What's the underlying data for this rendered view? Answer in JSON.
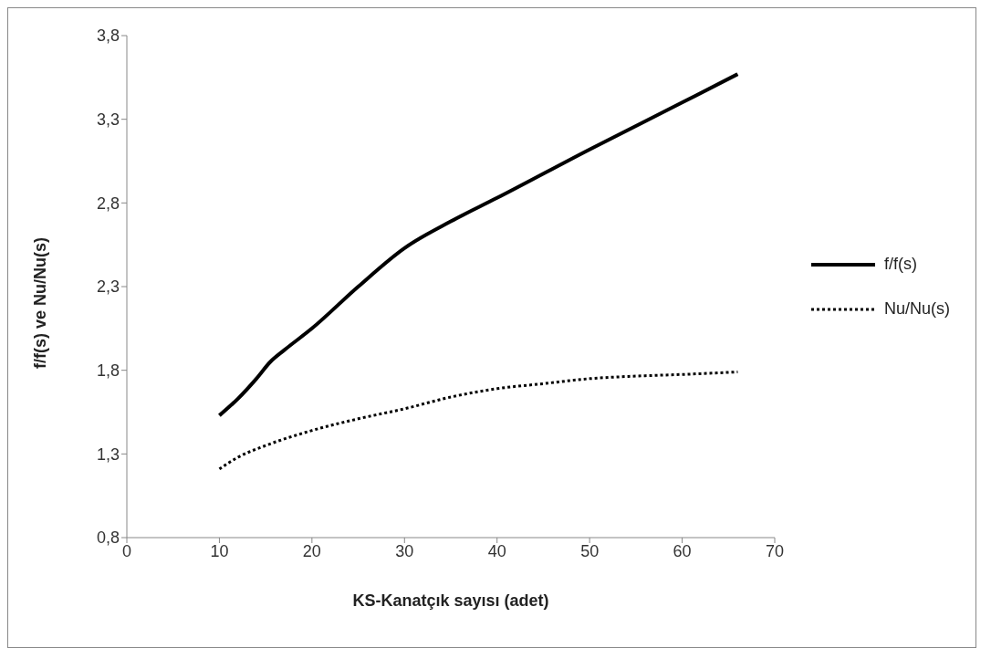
{
  "chart_data": {
    "type": "line",
    "xlabel": "KS-Kanatçık sayısı (adet)",
    "ylabel": "f/f(s) ve Nu/Nu(s)",
    "xlim": [
      0,
      70
    ],
    "xticks": [
      0,
      10,
      20,
      30,
      40,
      50,
      60,
      70
    ],
    "ylim": [
      0.8,
      3.8
    ],
    "yticks": [
      {
        "value": 0.8,
        "label": "0,8"
      },
      {
        "value": 1.3,
        "label": "1,3"
      },
      {
        "value": 1.8,
        "label": "1,8"
      },
      {
        "value": 2.3,
        "label": "2,3"
      },
      {
        "value": 2.8,
        "label": "2,8"
      },
      {
        "value": 3.3,
        "label": "3,3"
      },
      {
        "value": 3.8,
        "label": "3,8"
      }
    ],
    "legend": "right",
    "marker": "none",
    "series": [
      {
        "name": "f/f(s)",
        "color": "#000000",
        "line_style": "solid",
        "x": [
          10,
          12,
          14,
          15.5,
          17,
          20,
          25,
          30,
          35,
          40,
          50,
          60,
          66
        ],
        "values": [
          1.53,
          1.63,
          1.75,
          1.85,
          1.92,
          2.05,
          2.3,
          2.53,
          2.69,
          2.83,
          3.12,
          3.4,
          3.57
        ]
      },
      {
        "name": "Nu/Nu(s)",
        "color": "#000000",
        "line_style": "dotted",
        "x": [
          10,
          12,
          15,
          20,
          25,
          30,
          35,
          40,
          45,
          50,
          55,
          60,
          66
        ],
        "values": [
          1.21,
          1.28,
          1.35,
          1.44,
          1.51,
          1.57,
          1.64,
          1.69,
          1.72,
          1.75,
          1.765,
          1.775,
          1.79
        ]
      }
    ]
  }
}
